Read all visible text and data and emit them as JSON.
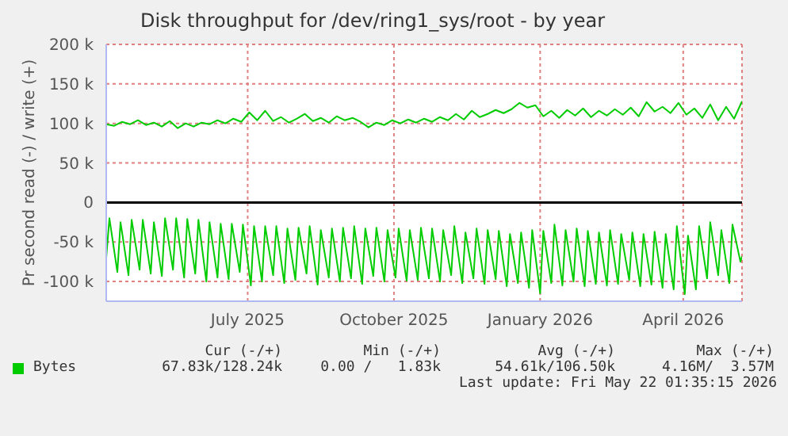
{
  "chart_data": {
    "type": "line",
    "title": "Disk throughput for /dev/ring1_sys/root - by year",
    "ylabel": "Pr second read (-) / write (+)",
    "xlim": [
      "2025-04-17",
      "2026-05-22"
    ],
    "xticks": [
      {
        "value": "2025-07-15",
        "label": "July 2025"
      },
      {
        "value": "2025-10-15",
        "label": "October 2025"
      },
      {
        "value": "2026-01-15",
        "label": "January 2026"
      },
      {
        "value": "2026-04-15",
        "label": "April 2026"
      }
    ],
    "ylim": [
      -125000,
      200000
    ],
    "yticks": [
      {
        "value": -100000,
        "label": "-100 k"
      },
      {
        "value": -50000,
        "label": "-50 k"
      },
      0,
      {
        "value": 50000,
        "label": "50 k"
      },
      {
        "value": 100000,
        "label": "100 k"
      },
      {
        "value": 150000,
        "label": "150 k"
      },
      {
        "value": 200000,
        "label": "200 k"
      }
    ],
    "grid": true,
    "legend": "bottom",
    "marker": "none",
    "line_style": "solid",
    "ref_lines": [
      {
        "axis": "y",
        "value": 0,
        "color": "#000000"
      }
    ],
    "annotations": [
      "Cur (-/+)",
      "Min (-/+)",
      "Avg (-/+)",
      "Max (-/+)",
      "67.83k/128.24k",
      "0.00 /   1.83k",
      "54.61k/106.50k",
      "4.16M/  3.57M",
      "Last update: Fri May 22 01:35:15 2026"
    ],
    "series": [
      {
        "name": "Bytes",
        "color": "#00cc00",
        "x": [
          "2025-04-17",
          "2025-04-22",
          "2025-04-27",
          "2025-05-02",
          "2025-05-07",
          "2025-05-12",
          "2025-05-17",
          "2025-05-22",
          "2025-05-27",
          "2025-06-01",
          "2025-06-06",
          "2025-06-11",
          "2025-06-16",
          "2025-06-21",
          "2025-06-26",
          "2025-07-01",
          "2025-07-06",
          "2025-07-11",
          "2025-07-16",
          "2025-07-21",
          "2025-07-26",
          "2025-07-31",
          "2025-08-05",
          "2025-08-10",
          "2025-08-15",
          "2025-08-20",
          "2025-08-25",
          "2025-08-30",
          "2025-09-04",
          "2025-09-09",
          "2025-09-14",
          "2025-09-19",
          "2025-09-24",
          "2025-09-29",
          "2025-10-04",
          "2025-10-09",
          "2025-10-14",
          "2025-10-19",
          "2025-10-24",
          "2025-10-29",
          "2025-11-03",
          "2025-11-08",
          "2025-11-13",
          "2025-11-18",
          "2025-11-23",
          "2025-11-28",
          "2025-12-03",
          "2025-12-08",
          "2025-12-13",
          "2025-12-18",
          "2025-12-23",
          "2025-12-28",
          "2026-01-02",
          "2026-01-07",
          "2026-01-12",
          "2026-01-17",
          "2026-01-22",
          "2026-01-27",
          "2026-02-01",
          "2026-02-06",
          "2026-02-11",
          "2026-02-16",
          "2026-02-21",
          "2026-02-26",
          "2026-03-03",
          "2026-03-08",
          "2026-03-13",
          "2026-03-18",
          "2026-03-23",
          "2026-03-28",
          "2026-04-02",
          "2026-04-07",
          "2026-04-12",
          "2026-04-17",
          "2026-04-22",
          "2026-04-27",
          "2026-05-02",
          "2026-05-07",
          "2026-05-12",
          "2026-05-17",
          "2026-05-22"
        ],
        "values": [
          99000,
          97000,
          102000,
          99000,
          104000,
          98000,
          101000,
          96000,
          103000,
          94000,
          100000,
          96000,
          101000,
          99000,
          104000,
          100000,
          106000,
          102000,
          114000,
          104000,
          116000,
          103000,
          108000,
          101000,
          106000,
          112000,
          103000,
          107000,
          101000,
          109000,
          104000,
          107000,
          102000,
          95000,
          101000,
          98000,
          104000,
          100000,
          105000,
          101000,
          106000,
          102000,
          108000,
          104000,
          112000,
          105000,
          116000,
          108000,
          112000,
          117000,
          113000,
          118000,
          126000,
          120000,
          123000,
          109000,
          116000,
          107000,
          117000,
          110000,
          119000,
          108000,
          116000,
          110000,
          118000,
          111000,
          120000,
          109000,
          127000,
          115000,
          121000,
          113000,
          126000,
          111000,
          119000,
          107000,
          124000,
          104000,
          121000,
          106000,
          128000
        ]
      },
      {
        "color": "#00cc00",
        "x": [
          "2025-04-17",
          "2025-04-19",
          "2025-04-24",
          "2025-04-26",
          "2025-05-01",
          "2025-05-03",
          "2025-05-08",
          "2025-05-10",
          "2025-05-15",
          "2025-05-17",
          "2025-05-22",
          "2025-05-24",
          "2025-05-29",
          "2025-05-31",
          "2025-06-05",
          "2025-06-07",
          "2025-06-12",
          "2025-06-14",
          "2025-06-19",
          "2025-06-21",
          "2025-06-26",
          "2025-06-28",
          "2025-07-03",
          "2025-07-05",
          "2025-07-10",
          "2025-07-12",
          "2025-07-17",
          "2025-07-19",
          "2025-07-24",
          "2025-07-26",
          "2025-07-31",
          "2025-08-02",
          "2025-08-07",
          "2025-08-09",
          "2025-08-14",
          "2025-08-16",
          "2025-08-21",
          "2025-08-23",
          "2025-08-28",
          "2025-08-30",
          "2025-09-04",
          "2025-09-06",
          "2025-09-11",
          "2025-09-13",
          "2025-09-18",
          "2025-09-20",
          "2025-09-25",
          "2025-09-27",
          "2025-10-02",
          "2025-10-04",
          "2025-10-09",
          "2025-10-11",
          "2025-10-16",
          "2025-10-18",
          "2025-10-23",
          "2025-10-25",
          "2025-10-30",
          "2025-11-01",
          "2025-11-06",
          "2025-11-08",
          "2025-11-13",
          "2025-11-15",
          "2025-11-20",
          "2025-11-22",
          "2025-11-27",
          "2025-11-29",
          "2025-12-04",
          "2025-12-06",
          "2025-12-11",
          "2025-12-13",
          "2025-12-18",
          "2025-12-20",
          "2025-12-25",
          "2025-12-27",
          "2026-01-01",
          "2026-01-03",
          "2026-01-08",
          "2026-01-10",
          "2026-01-15",
          "2026-01-17",
          "2026-01-22",
          "2026-01-24",
          "2026-01-29",
          "2026-01-31",
          "2026-02-05",
          "2026-02-07",
          "2026-02-12",
          "2026-02-14",
          "2026-02-19",
          "2026-02-21",
          "2026-02-26",
          "2026-02-28",
          "2026-03-05",
          "2026-03-07",
          "2026-03-12",
          "2026-03-14",
          "2026-03-19",
          "2026-03-21",
          "2026-03-26",
          "2026-03-28",
          "2026-04-02",
          "2026-04-04",
          "2026-04-09",
          "2026-04-11",
          "2026-04-16",
          "2026-04-18",
          "2026-04-23",
          "2026-04-25",
          "2026-04-30",
          "2026-05-02",
          "2026-05-07",
          "2026-05-09",
          "2026-05-14",
          "2026-05-16",
          "2026-05-21",
          "2026-05-22"
        ],
        "values": [
          -70000,
          -20000,
          -88000,
          -25000,
          -92000,
          -22000,
          -85000,
          -22000,
          -90000,
          -25000,
          -93000,
          -20000,
          -85000,
          -20000,
          -95000,
          -21000,
          -90000,
          -22000,
          -100000,
          -25000,
          -95000,
          -27000,
          -97000,
          -27000,
          -88000,
          -28000,
          -105000,
          -30000,
          -100000,
          -30000,
          -92000,
          -30000,
          -102000,
          -33000,
          -98000,
          -32000,
          -90000,
          -30000,
          -104000,
          -35000,
          -95000,
          -33000,
          -100000,
          -32000,
          -96000,
          -30000,
          -103000,
          -33000,
          -93000,
          -32000,
          -100000,
          -35000,
          -95000,
          -33000,
          -99000,
          -35000,
          -98000,
          -32000,
          -96000,
          -33000,
          -100000,
          -35000,
          -92000,
          -30000,
          -102000,
          -38000,
          -96000,
          -33000,
          -103000,
          -35000,
          -97000,
          -36000,
          -106000,
          -40000,
          -102000,
          -38000,
          -108000,
          -35000,
          -115000,
          -36000,
          -102000,
          -28000,
          -105000,
          -35000,
          -100000,
          -33000,
          -106000,
          -36000,
          -103000,
          -38000,
          -105000,
          -35000,
          -103000,
          -40000,
          -98000,
          -38000,
          -106000,
          -40000,
          -104000,
          -37000,
          -108000,
          -40000,
          -110000,
          -30000,
          -116000,
          -42000,
          -110000,
          -30000,
          -96000,
          -25000,
          -92000,
          -35000,
          -102000,
          -28000,
          -75000,
          -68000
        ]
      }
    ]
  }
}
